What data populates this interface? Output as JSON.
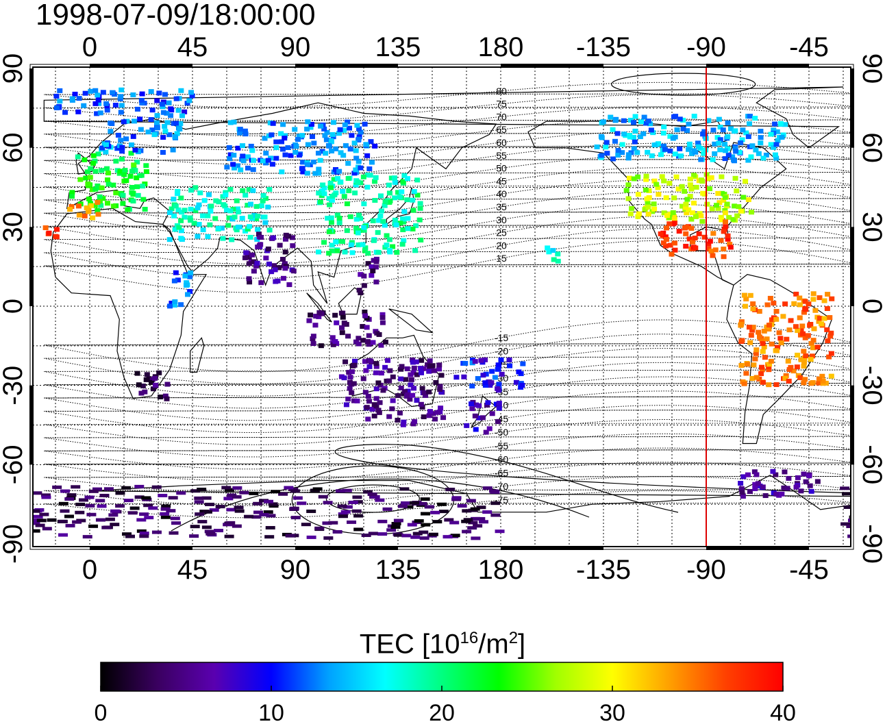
{
  "title": "1998-07-09/18:00:00",
  "map": {
    "x_tick_labels": [
      "0",
      "45",
      "90",
      "135",
      "180",
      "-135",
      "-90",
      "-45"
    ],
    "y_tick_labels": [
      "90",
      "60",
      "30",
      "0",
      "-30",
      "-60",
      "-90"
    ],
    "meridian_marker_lon": -90,
    "meridian_marker_color": "#dd0000",
    "contour_labels_north": [
      "80",
      "75",
      "70",
      "65",
      "60",
      "55",
      "50",
      "45",
      "40",
      "35",
      "30",
      "25",
      "20",
      "15"
    ],
    "contour_labels_south": [
      "-15",
      "-20",
      "-25",
      "-30",
      "-35",
      "-40",
      "-45",
      "-50",
      "-55",
      "-60",
      "-65",
      "-70",
      "-75"
    ]
  },
  "colorbar": {
    "label_main": "TEC  [10",
    "label_sup1": "16",
    "label_mid": "/m",
    "label_sup2": "2",
    "label_end": "]",
    "min": 0,
    "max": 40,
    "tick_labels": [
      "0",
      "10",
      "20",
      "30",
      "40"
    ],
    "stops": [
      "#000000",
      "#3a0060",
      "#5a00b0",
      "#0000ff",
      "#00a0ff",
      "#00ffff",
      "#00ff80",
      "#00ff00",
      "#a0ff00",
      "#ffff00",
      "#ffa000",
      "#ff4000",
      "#ff0000"
    ]
  },
  "tec_regions": [
    {
      "name": "western-europe",
      "lon": [
        -8,
        25
      ],
      "lat": [
        36,
        58
      ],
      "tec": 22
    },
    {
      "name": "scandinavia",
      "lon": [
        5,
        40
      ],
      "lat": [
        58,
        72
      ],
      "tec": 13
    },
    {
      "name": "arctic-europe",
      "lon": [
        -15,
        45
      ],
      "lat": [
        72,
        82
      ],
      "tec": 12
    },
    {
      "name": "iberia",
      "lon": [
        -10,
        5
      ],
      "lat": [
        33,
        40
      ],
      "tec": 33
    },
    {
      "name": "north-africa",
      "lon": [
        -20,
        -14
      ],
      "lat": [
        26,
        30
      ],
      "tec": 37
    },
    {
      "name": "east-africa",
      "lon": [
        35,
        45
      ],
      "lat": [
        0,
        15
      ],
      "tec": 12
    },
    {
      "name": "southern-africa",
      "lon": [
        20,
        35
      ],
      "lat": [
        -36,
        -24
      ],
      "tec": 4
    },
    {
      "name": "middle-east",
      "lon": [
        35,
        80
      ],
      "lat": [
        25,
        45
      ],
      "tec": 18
    },
    {
      "name": "india",
      "lon": [
        68,
        90
      ],
      "lat": [
        8,
        28
      ],
      "tec": 5
    },
    {
      "name": "east-asia",
      "lon": [
        100,
        145
      ],
      "lat": [
        20,
        50
      ],
      "tec": 19
    },
    {
      "name": "siberia",
      "lon": [
        60,
        125
      ],
      "lat": [
        50,
        70
      ],
      "tec": 13
    },
    {
      "name": "philippines",
      "lon": [
        118,
        128
      ],
      "lat": [
        5,
        18
      ],
      "tec": 4
    },
    {
      "name": "indonesia",
      "lon": [
        95,
        130
      ],
      "lat": [
        -15,
        -2
      ],
      "tec": 4
    },
    {
      "name": "australia",
      "lon": [
        110,
        155
      ],
      "lat": [
        -45,
        -20
      ],
      "tec": 5
    },
    {
      "name": "new-zealand",
      "lon": [
        165,
        180
      ],
      "lat": [
        -48,
        -36
      ],
      "tec": 7
    },
    {
      "name": "pacific-south",
      "lon": [
        160,
        190
      ],
      "lat": [
        -32,
        -20
      ],
      "tec": 10
    },
    {
      "name": "hawaii",
      "lon": [
        -160,
        -153
      ],
      "lat": [
        17,
        24
      ],
      "tec": 18
    },
    {
      "name": "north-america",
      "lon": [
        -125,
        -70
      ],
      "lat": [
        32,
        50
      ],
      "tec": 28
    },
    {
      "name": "southern-usa",
      "lon": [
        -110,
        -78
      ],
      "lat": [
        18,
        32
      ],
      "tec": 37
    },
    {
      "name": "canada",
      "lon": [
        -140,
        -55
      ],
      "lat": [
        55,
        72
      ],
      "tec": 14
    },
    {
      "name": "south-america",
      "lon": [
        -75,
        -35
      ],
      "lat": [
        -30,
        5
      ],
      "tec": 35
    },
    {
      "name": "patagonia",
      "lon": [
        -75,
        -40
      ],
      "lat": [
        -72,
        -62
      ],
      "tec": 6
    },
    {
      "name": "antarctica",
      "lon": [
        -30,
        180
      ],
      "lat": [
        -88,
        -68
      ],
      "tec": 3
    }
  ]
}
